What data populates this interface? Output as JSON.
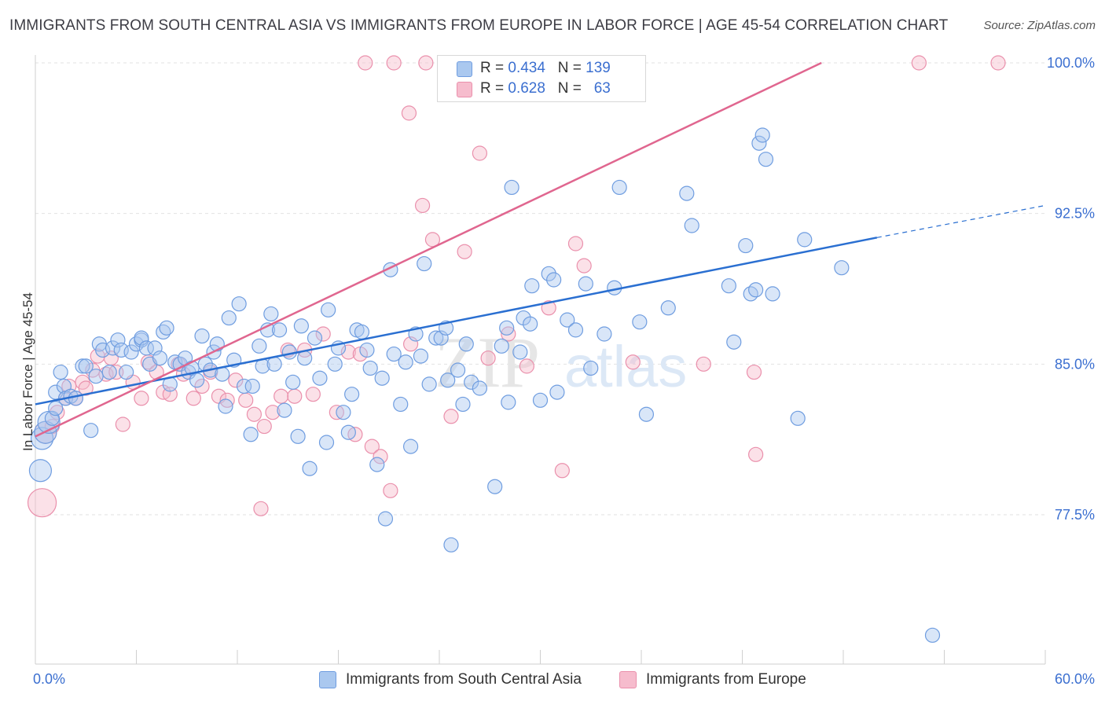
{
  "title": "IMMIGRANTS FROM SOUTH CENTRAL ASIA VS IMMIGRANTS FROM EUROPE IN LABOR FORCE | AGE 45-54 CORRELATION CHART",
  "source": "Source: ZipAtlas.com",
  "watermark": {
    "zip": "ZIP",
    "atlas": "atlas"
  },
  "legend_top": {
    "rows": [
      {
        "r_label": "R =",
        "r_value": "0.434",
        "n_label": "N =",
        "n_value": "139"
      },
      {
        "r_label": "R =",
        "r_value": "0.628",
        "n_label": "N =",
        "n_value": "63"
      }
    ]
  },
  "colors": {
    "blue_fill": "#aac8ef",
    "blue_stroke": "#6f9de0",
    "blue_line": "#2a6fd1",
    "pink_fill": "#f6bccd",
    "pink_stroke": "#ea90ac",
    "pink_line": "#e0668f",
    "axis_text": "#3b6fd0",
    "grid": "#e2e2e2"
  },
  "chart_data": {
    "type": "scatter",
    "title": "IMMIGRANTS FROM SOUTH CENTRAL ASIA VS IMMIGRANTS FROM EUROPE IN LABOR FORCE | AGE 45-54 CORRELATION CHART",
    "xlabel": "",
    "ylabel": "In Labor Force | Age 45-54",
    "xlim": [
      0,
      60
    ],
    "ylim": [
      70.0,
      101.0
    ],
    "x_tick_labels": [
      "0.0%",
      "60.0%"
    ],
    "y_ticks": [
      77.5,
      85.0,
      92.5,
      100.0
    ],
    "y_tick_labels": [
      "77.5%",
      "85.0%",
      "92.5%",
      "100.0%"
    ],
    "grid": true,
    "legend_position": "top-center",
    "series": [
      {
        "name": "Immigrants from South Central Asia",
        "color": "#6f9de0",
        "r": 0.434,
        "n": 139,
        "trend": {
          "x": [
            0,
            50
          ],
          "y": [
            83.0,
            91.3
          ],
          "dashed_to": [
            60,
            92.9
          ]
        },
        "points": [
          [
            0.3,
            79.7
          ],
          [
            0.4,
            81.3
          ],
          [
            0.6,
            81.6
          ],
          [
            0.8,
            82.1
          ],
          [
            1.0,
            82.3
          ],
          [
            1.2,
            82.8
          ],
          [
            1.2,
            83.6
          ],
          [
            1.5,
            84.6
          ],
          [
            1.7,
            83.9
          ],
          [
            1.8,
            83.3
          ],
          [
            2.1,
            83.4
          ],
          [
            2.4,
            83.3
          ],
          [
            2.8,
            84.9
          ],
          [
            3.0,
            84.9
          ],
          [
            3.3,
            81.7
          ],
          [
            3.6,
            84.4
          ],
          [
            3.8,
            86.0
          ],
          [
            4.0,
            85.7
          ],
          [
            4.4,
            84.6
          ],
          [
            4.6,
            85.8
          ],
          [
            4.9,
            86.2
          ],
          [
            5.1,
            85.7
          ],
          [
            5.4,
            84.6
          ],
          [
            5.7,
            85.6
          ],
          [
            6.0,
            86.0
          ],
          [
            6.3,
            86.2
          ],
          [
            6.3,
            86.3
          ],
          [
            6.6,
            85.8
          ],
          [
            6.8,
            85.0
          ],
          [
            7.1,
            85.8
          ],
          [
            7.4,
            85.3
          ],
          [
            7.6,
            86.6
          ],
          [
            7.8,
            86.8
          ],
          [
            8.0,
            84.0
          ],
          [
            8.3,
            85.1
          ],
          [
            8.6,
            85.0
          ],
          [
            8.9,
            85.3
          ],
          [
            9.1,
            84.6
          ],
          [
            9.3,
            84.8
          ],
          [
            9.6,
            84.2
          ],
          [
            9.9,
            86.4
          ],
          [
            10.1,
            85.0
          ],
          [
            10.4,
            84.7
          ],
          [
            10.6,
            85.6
          ],
          [
            10.8,
            86.0
          ],
          [
            11.1,
            84.5
          ],
          [
            11.3,
            82.9
          ],
          [
            11.5,
            87.3
          ],
          [
            11.8,
            85.2
          ],
          [
            12.1,
            88.0
          ],
          [
            12.4,
            83.9
          ],
          [
            12.8,
            81.5
          ],
          [
            12.9,
            83.9
          ],
          [
            13.3,
            85.9
          ],
          [
            13.5,
            84.9
          ],
          [
            13.8,
            86.7
          ],
          [
            14.0,
            87.5
          ],
          [
            14.2,
            85.0
          ],
          [
            14.5,
            86.7
          ],
          [
            14.8,
            82.7
          ],
          [
            15.1,
            85.6
          ],
          [
            15.3,
            84.1
          ],
          [
            15.6,
            81.4
          ],
          [
            15.8,
            86.9
          ],
          [
            16.0,
            85.3
          ],
          [
            16.3,
            79.8
          ],
          [
            16.6,
            86.3
          ],
          [
            16.9,
            84.3
          ],
          [
            17.3,
            81.1
          ],
          [
            17.4,
            87.7
          ],
          [
            17.8,
            85.0
          ],
          [
            18.0,
            85.8
          ],
          [
            18.3,
            82.6
          ],
          [
            18.6,
            81.6
          ],
          [
            18.8,
            83.5
          ],
          [
            19.1,
            86.7
          ],
          [
            19.4,
            86.6
          ],
          [
            19.7,
            85.7
          ],
          [
            19.9,
            84.8
          ],
          [
            20.3,
            80.0
          ],
          [
            20.6,
            84.3
          ],
          [
            20.8,
            77.3
          ],
          [
            21.1,
            89.7
          ],
          [
            21.3,
            85.5
          ],
          [
            21.7,
            83.0
          ],
          [
            22.0,
            85.1
          ],
          [
            22.3,
            80.9
          ],
          [
            22.6,
            86.5
          ],
          [
            22.9,
            85.4
          ],
          [
            23.1,
            90.0
          ],
          [
            23.4,
            84.0
          ],
          [
            23.8,
            86.3
          ],
          [
            24.1,
            86.3
          ],
          [
            24.4,
            86.8
          ],
          [
            24.5,
            84.2
          ],
          [
            24.7,
            76.0
          ],
          [
            25.1,
            84.7
          ],
          [
            25.4,
            83.0
          ],
          [
            25.6,
            86.0
          ],
          [
            25.9,
            84.1
          ],
          [
            26.4,
            83.8
          ],
          [
            27.3,
            78.9
          ],
          [
            27.7,
            85.9
          ],
          [
            28.0,
            86.8
          ],
          [
            28.1,
            83.1
          ],
          [
            28.3,
            93.8
          ],
          [
            28.8,
            85.6
          ],
          [
            29.0,
            87.3
          ],
          [
            29.4,
            87.0
          ],
          [
            29.5,
            88.9
          ],
          [
            30.0,
            83.2
          ],
          [
            30.5,
            89.5
          ],
          [
            30.8,
            89.2
          ],
          [
            31.0,
            83.6
          ],
          [
            31.6,
            87.2
          ],
          [
            32.1,
            86.7
          ],
          [
            32.7,
            89.0
          ],
          [
            33.0,
            84.8
          ],
          [
            33.8,
            86.5
          ],
          [
            34.4,
            88.8
          ],
          [
            34.7,
            93.8
          ],
          [
            35.9,
            87.1
          ],
          [
            36.3,
            82.5
          ],
          [
            37.6,
            87.8
          ],
          [
            38.7,
            93.5
          ],
          [
            39.0,
            91.9
          ],
          [
            41.2,
            88.9
          ],
          [
            41.5,
            86.1
          ],
          [
            42.2,
            90.9
          ],
          [
            42.5,
            88.5
          ],
          [
            42.8,
            88.7
          ],
          [
            43.0,
            96.0
          ],
          [
            43.2,
            96.4
          ],
          [
            43.4,
            95.2
          ],
          [
            43.8,
            88.5
          ],
          [
            45.3,
            82.3
          ],
          [
            45.7,
            91.2
          ],
          [
            47.9,
            89.8
          ],
          [
            53.3,
            71.5
          ]
        ]
      },
      {
        "name": "Immigrants from Europe",
        "color": "#ea90ac",
        "r": 0.628,
        "n": 63,
        "trend": {
          "x": [
            0,
            46.7
          ],
          "y": [
            81.4,
            100.0
          ]
        },
        "points": [
          [
            0.4,
            78.1
          ],
          [
            0.6,
            81.6
          ],
          [
            1.0,
            81.9
          ],
          [
            1.3,
            82.6
          ],
          [
            1.8,
            83.3
          ],
          [
            2.0,
            83.9
          ],
          [
            2.4,
            83.3
          ],
          [
            2.8,
            84.1
          ],
          [
            3.0,
            83.8
          ],
          [
            3.4,
            84.7
          ],
          [
            3.7,
            85.4
          ],
          [
            4.2,
            84.5
          ],
          [
            4.5,
            85.3
          ],
          [
            4.8,
            84.6
          ],
          [
            5.2,
            82.0
          ],
          [
            5.8,
            84.1
          ],
          [
            6.3,
            83.3
          ],
          [
            6.7,
            85.1
          ],
          [
            7.2,
            84.6
          ],
          [
            7.6,
            83.6
          ],
          [
            8.0,
            83.5
          ],
          [
            8.5,
            85.0
          ],
          [
            8.8,
            84.5
          ],
          [
            9.4,
            83.3
          ],
          [
            9.9,
            83.9
          ],
          [
            10.4,
            84.6
          ],
          [
            10.9,
            83.4
          ],
          [
            11.4,
            83.2
          ],
          [
            11.9,
            84.2
          ],
          [
            12.5,
            83.2
          ],
          [
            13.0,
            82.5
          ],
          [
            13.6,
            81.9
          ],
          [
            14.1,
            82.6
          ],
          [
            14.6,
            83.4
          ],
          [
            15.0,
            85.7
          ],
          [
            15.4,
            83.4
          ],
          [
            16.0,
            85.7
          ],
          [
            16.5,
            83.5
          ],
          [
            17.1,
            86.5
          ],
          [
            17.9,
            82.6
          ],
          [
            18.6,
            85.6
          ],
          [
            19.3,
            85.5
          ],
          [
            20.0,
            80.9
          ],
          [
            20.5,
            80.4
          ],
          [
            21.1,
            78.7
          ],
          [
            19.0,
            81.5
          ],
          [
            13.4,
            77.8
          ],
          [
            22.2,
            97.5
          ],
          [
            22.3,
            86.0
          ],
          [
            23.0,
            92.9
          ],
          [
            23.6,
            91.2
          ],
          [
            24.7,
            82.4
          ],
          [
            25.5,
            90.6
          ],
          [
            26.4,
            95.5
          ],
          [
            26.9,
            85.3
          ],
          [
            28.1,
            86.5
          ],
          [
            29.2,
            84.9
          ],
          [
            30.5,
            87.8
          ],
          [
            31.3,
            79.7
          ],
          [
            32.1,
            91.0
          ],
          [
            32.6,
            89.9
          ],
          [
            35.5,
            85.1
          ],
          [
            39.7,
            85.0
          ],
          [
            42.8,
            80.5
          ],
          [
            42.7,
            84.6
          ]
        ]
      },
      {
        "name": "Immigrants from Europe (top edge)",
        "color": "#ea90ac",
        "points": [
          [
            19.6,
            100.0
          ],
          [
            21.3,
            100.0
          ],
          [
            23.2,
            100.0
          ],
          [
            24.9,
            100.0
          ],
          [
            25.9,
            100.0
          ],
          [
            27.0,
            100.0
          ],
          [
            28.4,
            100.0
          ],
          [
            30.7,
            100.0
          ],
          [
            33.0,
            100.0
          ],
          [
            34.5,
            100.0
          ],
          [
            52.5,
            100.0
          ],
          [
            57.2,
            100.0
          ]
        ]
      },
      {
        "name": "Immigrants from South Central Asia (top edge)",
        "color": "#6f9de0",
        "points": [
          [
            25.3,
            100.0
          ],
          [
            26.9,
            100.0
          ],
          [
            28.8,
            100.0
          ],
          [
            31.3,
            100.0
          ]
        ]
      }
    ]
  },
  "bottom_legend": [
    {
      "label": "Immigrants from South Central Asia"
    },
    {
      "label": "Immigrants from Europe"
    }
  ]
}
